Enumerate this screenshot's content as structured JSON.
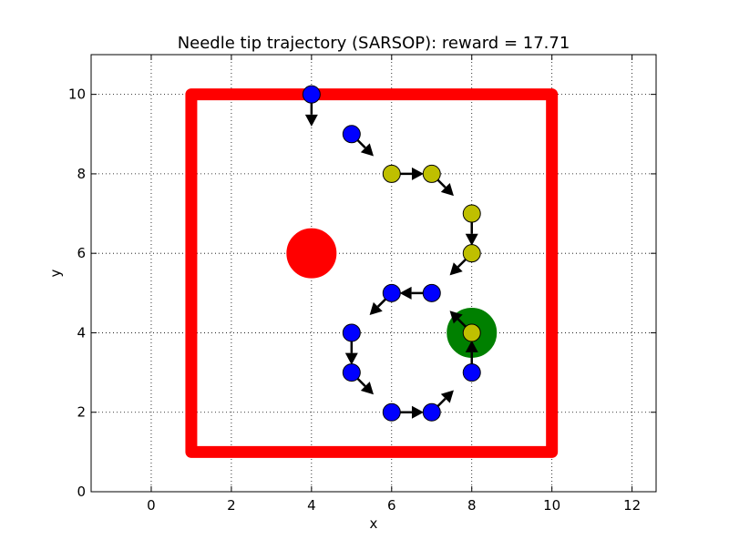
{
  "chart_data": {
    "type": "scatter",
    "title": "Needle tip trajectory (SARSOP): reward = 17.71",
    "xlabel": "x",
    "ylabel": "y",
    "xlim": [
      -1.5,
      12.6
    ],
    "ylim": [
      0,
      11
    ],
    "xticks": [
      0,
      2,
      4,
      6,
      8,
      10,
      12
    ],
    "yticks": [
      0,
      2,
      4,
      6,
      8,
      10
    ],
    "grid": true,
    "boundary": {
      "x": [
        1,
        10,
        10,
        1,
        1
      ],
      "y": [
        10,
        10,
        1,
        1,
        10
      ],
      "color": "#ff0000"
    },
    "obstacle": {
      "x": 4,
      "y": 6,
      "color": "#ff0000"
    },
    "goal": {
      "x": 8,
      "y": 4,
      "color": "#008000"
    },
    "trajectory": [
      {
        "x": 4,
        "y": 10,
        "dx": 0,
        "dy": -0.8,
        "color": "#0000ff"
      },
      {
        "x": 5,
        "y": 9,
        "dx": 0.55,
        "dy": -0.55,
        "color": "#0000ff"
      },
      {
        "x": 6,
        "y": 8,
        "dx": 0.8,
        "dy": 0,
        "color": "#bfbf00"
      },
      {
        "x": 7,
        "y": 8,
        "dx": 0.55,
        "dy": -0.55,
        "color": "#bfbf00"
      },
      {
        "x": 8,
        "y": 7,
        "dx": 0,
        "dy": -0.8,
        "color": "#bfbf00"
      },
      {
        "x": 8,
        "y": 6,
        "dx": -0.55,
        "dy": -0.55,
        "color": "#bfbf00"
      },
      {
        "x": 7,
        "y": 5,
        "dx": -0.8,
        "dy": 0,
        "color": "#0000ff"
      },
      {
        "x": 6,
        "y": 5,
        "dx": -0.55,
        "dy": -0.55,
        "color": "#0000ff"
      },
      {
        "x": 5,
        "y": 4,
        "dx": 0,
        "dy": -0.8,
        "color": "#0000ff"
      },
      {
        "x": 5,
        "y": 3,
        "dx": 0.55,
        "dy": -0.55,
        "color": "#0000ff"
      },
      {
        "x": 6,
        "y": 2,
        "dx": 0.8,
        "dy": 0,
        "color": "#0000ff"
      },
      {
        "x": 7,
        "y": 2,
        "dx": 0.55,
        "dy": 0.55,
        "color": "#0000ff"
      },
      {
        "x": 8,
        "y": 3,
        "dx": 0,
        "dy": 0.8,
        "color": "#0000ff"
      },
      {
        "x": 8,
        "y": 4,
        "dx": -0.55,
        "dy": 0.55,
        "color": "#bfbf00"
      }
    ]
  }
}
